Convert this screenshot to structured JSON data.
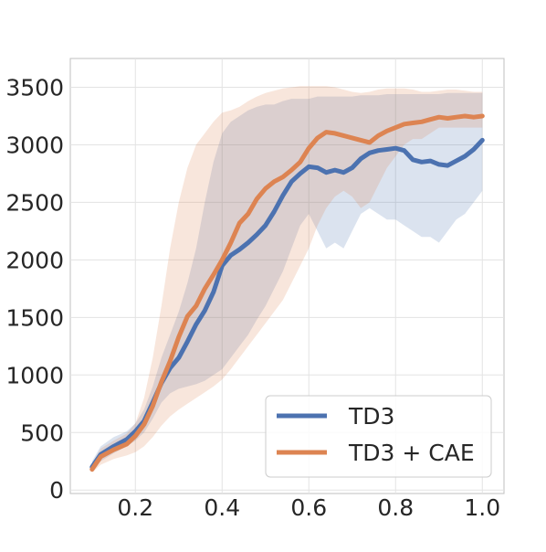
{
  "chart_data": {
    "type": "line",
    "title": "",
    "xlabel": "",
    "ylabel": "",
    "xlim": [
      0.05,
      1.05
    ],
    "ylim": [
      -30,
      3750
    ],
    "x_ticks": [
      "0.2",
      "0.4",
      "0.6",
      "0.8",
      "1.0"
    ],
    "y_ticks": [
      "0",
      "500",
      "1000",
      "1500",
      "2000",
      "2500",
      "3000",
      "3500"
    ],
    "grid": true,
    "legend_position": "lower-right",
    "series": [
      {
        "name": "TD3",
        "color": "#4c72b0",
        "x": [
          0.1,
          0.12,
          0.15,
          0.18,
          0.2,
          0.22,
          0.24,
          0.26,
          0.28,
          0.3,
          0.32,
          0.34,
          0.36,
          0.38,
          0.4,
          0.42,
          0.44,
          0.46,
          0.48,
          0.5,
          0.52,
          0.54,
          0.56,
          0.58,
          0.6,
          0.62,
          0.64,
          0.66,
          0.68,
          0.7,
          0.72,
          0.74,
          0.76,
          0.78,
          0.8,
          0.82,
          0.84,
          0.86,
          0.88,
          0.9,
          0.92,
          0.94,
          0.96,
          0.98,
          1.0
        ],
        "y": [
          200,
          310,
          380,
          440,
          510,
          600,
          760,
          930,
          1060,
          1150,
          1290,
          1440,
          1560,
          1720,
          1950,
          2040,
          2090,
          2150,
          2220,
          2300,
          2420,
          2560,
          2680,
          2750,
          2810,
          2800,
          2760,
          2780,
          2760,
          2800,
          2880,
          2930,
          2950,
          2960,
          2970,
          2950,
          2870,
          2850,
          2860,
          2830,
          2820,
          2860,
          2900,
          2960,
          3040
        ],
        "lower": [
          160,
          250,
          320,
          380,
          430,
          500,
          620,
          760,
          840,
          880,
          900,
          920,
          950,
          1000,
          1050,
          1150,
          1250,
          1350,
          1480,
          1600,
          1750,
          1900,
          2100,
          2300,
          2400,
          2250,
          2100,
          2150,
          2100,
          2250,
          2400,
          2450,
          2400,
          2350,
          2350,
          2300,
          2250,
          2200,
          2200,
          2150,
          2250,
          2350,
          2400,
          2500,
          2600
        ],
        "upper": [
          250,
          380,
          460,
          510,
          580,
          700,
          900,
          1150,
          1350,
          1550,
          1800,
          2100,
          2500,
          2850,
          3100,
          3200,
          3250,
          3300,
          3330,
          3350,
          3350,
          3380,
          3400,
          3400,
          3400,
          3420,
          3420,
          3420,
          3420,
          3420,
          3430,
          3430,
          3430,
          3440,
          3440,
          3440,
          3440,
          3440,
          3440,
          3440,
          3450,
          3450,
          3450,
          3450,
          3450
        ]
      },
      {
        "name": "TD3 + CAE",
        "color": "#dd8452",
        "x": [
          0.1,
          0.12,
          0.15,
          0.18,
          0.2,
          0.22,
          0.24,
          0.26,
          0.28,
          0.3,
          0.32,
          0.34,
          0.36,
          0.38,
          0.4,
          0.42,
          0.44,
          0.46,
          0.48,
          0.5,
          0.52,
          0.54,
          0.56,
          0.58,
          0.6,
          0.62,
          0.64,
          0.66,
          0.68,
          0.7,
          0.72,
          0.74,
          0.76,
          0.78,
          0.8,
          0.82,
          0.84,
          0.86,
          0.88,
          0.9,
          0.92,
          0.94,
          0.96,
          0.98,
          1.0
        ],
        "y": [
          180,
          290,
          350,
          400,
          470,
          570,
          730,
          940,
          1120,
          1330,
          1510,
          1600,
          1750,
          1870,
          2000,
          2150,
          2320,
          2400,
          2530,
          2620,
          2680,
          2720,
          2780,
          2850,
          2970,
          3060,
          3110,
          3100,
          3080,
          3060,
          3040,
          3020,
          3080,
          3120,
          3150,
          3180,
          3190,
          3200,
          3220,
          3240,
          3230,
          3240,
          3250,
          3240,
          3250
        ],
        "lower": [
          150,
          220,
          270,
          300,
          330,
          380,
          460,
          560,
          640,
          700,
          750,
          800,
          850,
          900,
          960,
          1050,
          1150,
          1250,
          1350,
          1450,
          1550,
          1650,
          1800,
          1950,
          2100,
          2300,
          2450,
          2550,
          2600,
          2550,
          2450,
          2500,
          2650,
          2800,
          2900,
          3000,
          3050,
          3050,
          3100,
          3150,
          3150,
          3150,
          3150,
          3150,
          3150
        ],
        "upper": [
          230,
          360,
          430,
          490,
          580,
          800,
          1150,
          1600,
          2100,
          2500,
          2800,
          3000,
          3100,
          3200,
          3280,
          3300,
          3330,
          3380,
          3420,
          3450,
          3470,
          3490,
          3500,
          3510,
          3510,
          3510,
          3510,
          3500,
          3480,
          3460,
          3450,
          3460,
          3480,
          3490,
          3490,
          3490,
          3480,
          3460,
          3460,
          3470,
          3480,
          3480,
          3470,
          3460,
          3460
        ]
      }
    ]
  }
}
